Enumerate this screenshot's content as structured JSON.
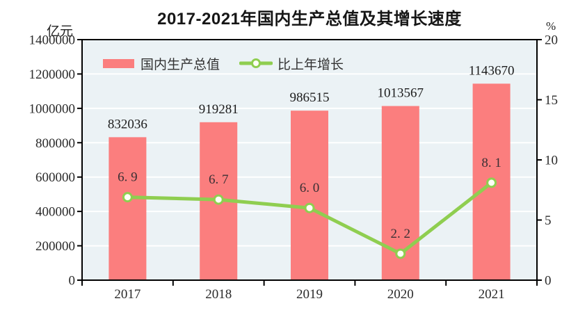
{
  "chart_data": {
    "type": "bar+line combo",
    "title": "2017-2021年国内生产总值及其增长速度",
    "unit_left": "亿元",
    "unit_right": "%",
    "categories": [
      "2017",
      "2018",
      "2019",
      "2020",
      "2021"
    ],
    "series": [
      {
        "name": "国内生产总值",
        "type": "bar",
        "axis": "left",
        "values": [
          832036,
          919281,
          986515,
          1013567,
          1143670
        ],
        "labels": [
          "832036",
          "919281",
          "986515",
          "1013567",
          "1143670"
        ]
      },
      {
        "name": "比上年增长",
        "type": "line",
        "axis": "right",
        "values": [
          6.9,
          6.7,
          6.0,
          2.2,
          8.1
        ],
        "labels": [
          "6. 9",
          "6. 7",
          "6. 0",
          "2. 2",
          "8. 1"
        ]
      }
    ],
    "left_axis": {
      "min": 0,
      "max": 1400000,
      "step": 200000,
      "tick_labels_top_to_bottom": [
        "1400000",
        "1200000",
        "1000000",
        "800000",
        "600000",
        "400000",
        "200000",
        "0"
      ]
    },
    "right_axis": {
      "min": 0,
      "max": 20,
      "step": 5,
      "tick_labels_top_to_bottom": [
        "20",
        "15",
        "10",
        "5",
        "0"
      ]
    },
    "grid": true,
    "legend_position": "inside-top-left",
    "colors": {
      "bar": "#FB7E7E",
      "line": "#8FCE50",
      "marker_fill": "#FEFFF6",
      "plot_bg": "#EBF2F5",
      "gridline": "#FFFFFF",
      "spine": "#000000",
      "text": "#1C1C1C"
    }
  }
}
